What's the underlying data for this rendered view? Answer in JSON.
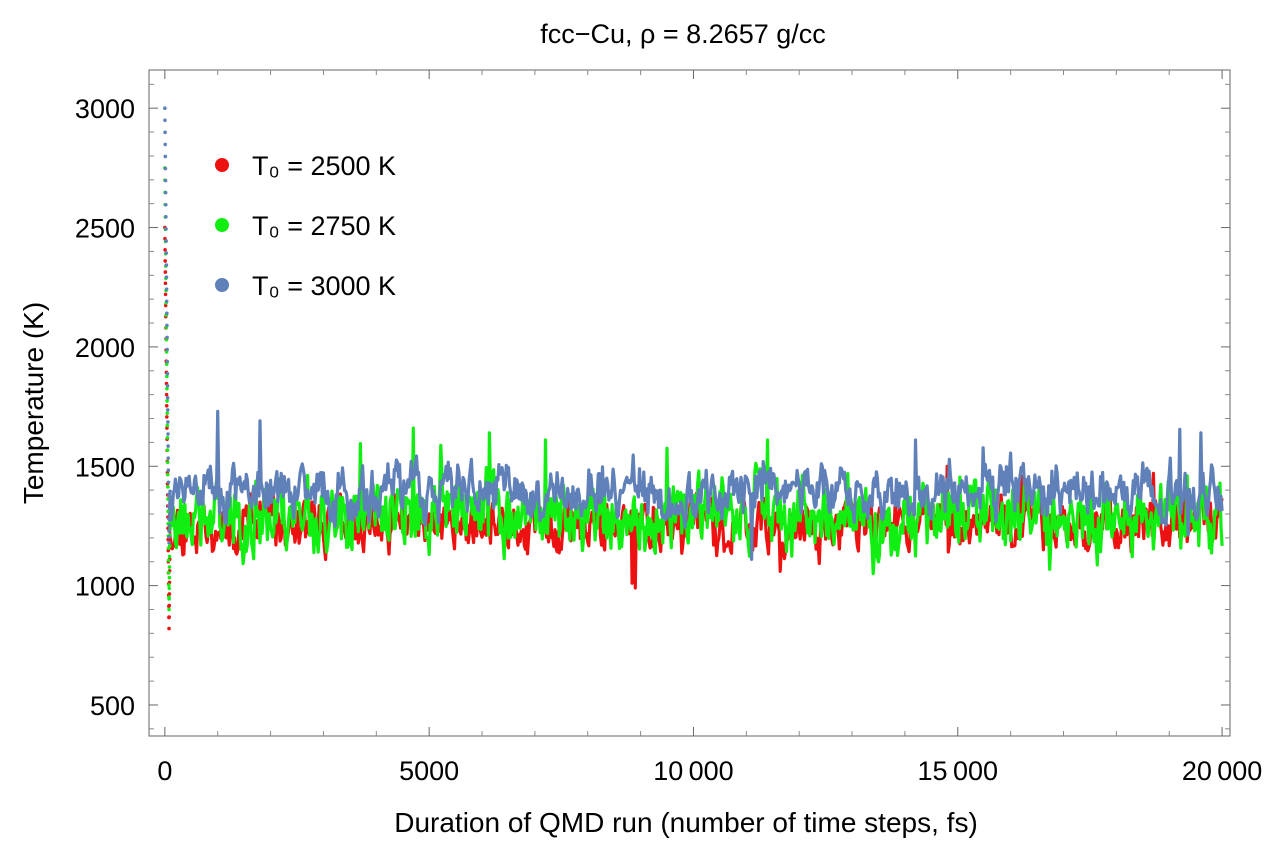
{
  "chart_data": {
    "type": "scatter",
    "title": "fcc−Cu, ρ = 8.2657 g/cc",
    "xlabel": "Duration of QMD run (number of time steps, fs)",
    "ylabel": "Temperature (K)",
    "xlim": [
      -300,
      20150
    ],
    "ylim": [
      370,
      3160
    ],
    "x_ticks": [
      0,
      5000,
      10000,
      15000,
      20000
    ],
    "x_tick_labels": [
      "0",
      "5000",
      "10 000",
      "15 000",
      "20 000"
    ],
    "y_ticks": [
      500,
      1000,
      1500,
      2000,
      2500,
      3000
    ],
    "y_tick_labels": [
      "500",
      "1000",
      "1500",
      "2000",
      "2500",
      "3000"
    ],
    "grid": false,
    "legend_position": "top-left",
    "series": [
      {
        "name": "T₀ = 2500 K",
        "label": "T0 = 2500 K",
        "color": "#ee1111",
        "initial": 2500,
        "min_after_start": 820,
        "equilibrium_mean": 1255,
        "amplitude": 65,
        "seed": 11,
        "spikes": [
          [
            1800,
            1350
          ],
          [
            8900,
            990
          ],
          [
            8850,
            1010
          ],
          [
            11650,
            1060
          ],
          [
            14800,
            1500
          ],
          [
            16200,
            1460
          ],
          [
            18700,
            1470
          ]
        ]
      },
      {
        "name": "T₀ = 2750 K",
        "label": "T0 = 2750 K",
        "color": "#11ee11",
        "initial": 2750,
        "min_after_start": 900,
        "equilibrium_mean": 1300,
        "amplitude": 90,
        "seed": 23,
        "spikes": [
          [
            4700,
            1660
          ],
          [
            6150,
            1640
          ],
          [
            7200,
            1610
          ],
          [
            9500,
            1575
          ],
          [
            11400,
            1610
          ],
          [
            13400,
            1050
          ],
          [
            3700,
            1595
          ]
        ]
      },
      {
        "name": "T₀ = 3000 K",
        "label": "T0 = 3000 K",
        "color": "#5f80b8",
        "initial": 3000,
        "min_after_start": 1180,
        "equilibrium_mean": 1395,
        "amplitude": 65,
        "seed": 37,
        "spikes": [
          [
            1000,
            1730
          ],
          [
            1800,
            1690
          ],
          [
            19200,
            1655
          ],
          [
            19600,
            1640
          ],
          [
            11100,
            1110
          ],
          [
            14200,
            1610
          ],
          [
            16000,
            1555
          ]
        ]
      }
    ]
  }
}
